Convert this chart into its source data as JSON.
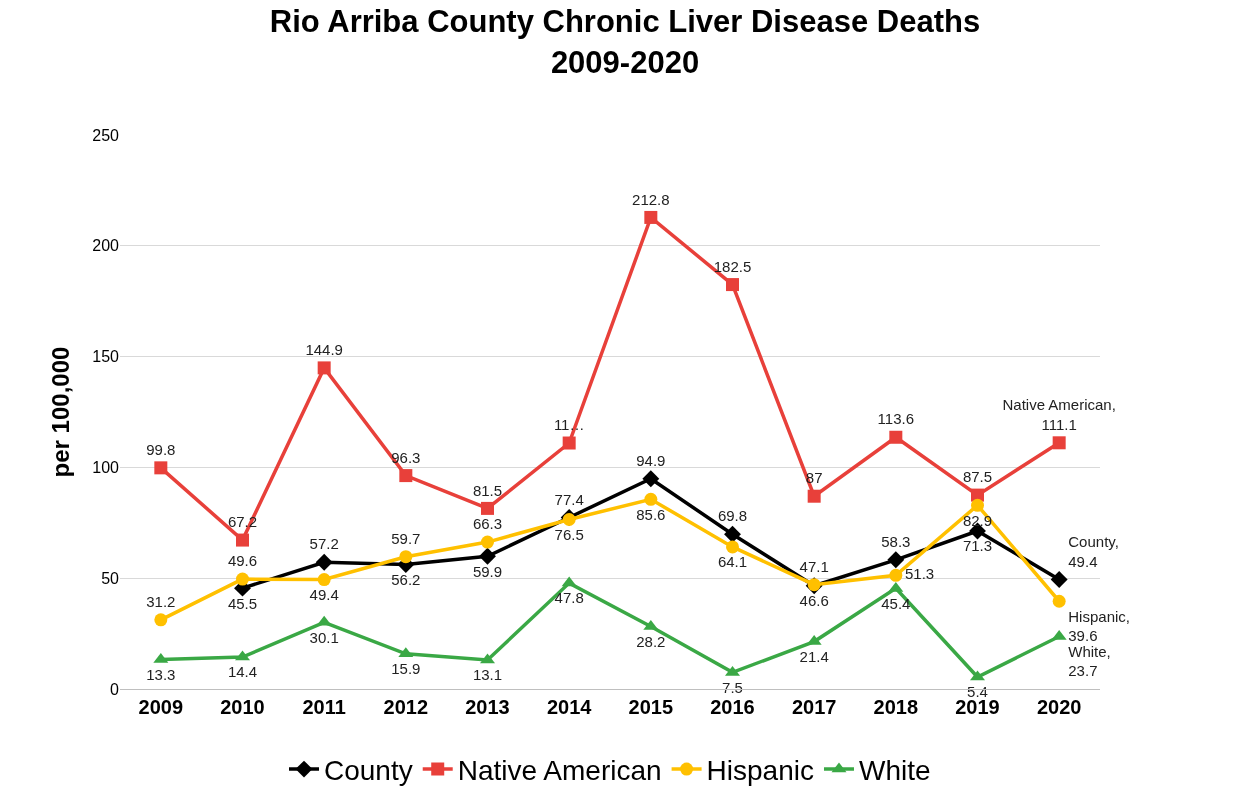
{
  "chart_data": {
    "type": "line",
    "title": "Rio Arriba County Chronic Liver Disease Deaths\n2009-2020",
    "ylabel": "per 100,000",
    "categories": [
      "2009",
      "2010",
      "2011",
      "2012",
      "2013",
      "2014",
      "2015",
      "2016",
      "2017",
      "2018",
      "2019",
      "2020"
    ],
    "series": [
      {
        "name": "County",
        "color": "#000000",
        "marker": "diamond",
        "values": [
          null,
          45.5,
          57.2,
          56.2,
          59.9,
          77.4,
          94.9,
          69.8,
          46.6,
          58.3,
          71.3,
          49.4
        ],
        "value_labels": [
          null,
          "45.5",
          "57.2",
          "56.2",
          "59.9",
          "77.4",
          "94.9",
          "69.8",
          "46.6",
          "58.3",
          "71.3",
          "County,\n49.4"
        ]
      },
      {
        "name": "Native American",
        "color": "#e8403a",
        "marker": "square",
        "values": [
          99.8,
          67.2,
          144.9,
          96.3,
          81.5,
          111,
          212.8,
          182.5,
          87,
          113.6,
          87.5,
          111.1
        ],
        "value_labels": [
          "99.8",
          "67.2",
          "144.9",
          "96.3",
          "81.5",
          "11…",
          "212.8",
          "182.5",
          "87",
          "113.6",
          "87.5",
          "Native American,\n111.1"
        ]
      },
      {
        "name": "Hispanic",
        "color": "#ffc000",
        "marker": "circle",
        "values": [
          31.2,
          49.6,
          49.4,
          59.7,
          66.3,
          76.5,
          85.6,
          64.1,
          47.1,
          51.3,
          82.9,
          39.6
        ],
        "value_labels": [
          "31.2",
          "49.6",
          "49.4",
          "59.7",
          "66.3",
          "76.5",
          "85.6",
          "64.1",
          "47.1",
          "51.3",
          "82.9",
          "Hispanic,\n39.6"
        ]
      },
      {
        "name": "White",
        "color": "#3aa845",
        "marker": "triangle",
        "values": [
          13.3,
          14.4,
          30.1,
          15.9,
          13.1,
          47.8,
          28.2,
          7.5,
          21.4,
          45.4,
          5.4,
          23.7
        ],
        "value_labels": [
          "13.3",
          "14.4",
          "30.1",
          "15.9",
          "13.1",
          "47.8",
          "28.2",
          "7.5",
          "21.4",
          "45.4",
          "5.4",
          "White,\n23.7"
        ]
      }
    ],
    "ylim": [
      0,
      250
    ],
    "yticks": [
      0,
      50,
      100,
      150,
      200,
      250
    ],
    "grid": "y",
    "legend": "bottom"
  }
}
